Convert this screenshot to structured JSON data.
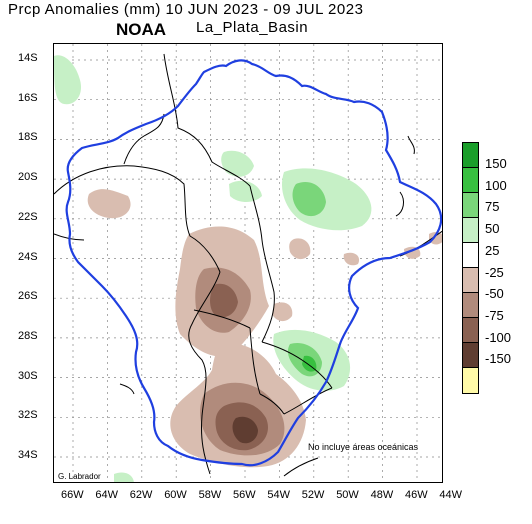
{
  "header": {
    "title": "Prcp Anomalies (mm) 10 JUN 2023 - 09 JUL 2023",
    "region": "La_Plata_Basin",
    "agency": "NOAA"
  },
  "map": {
    "lat_labels": [
      "14S",
      "16S",
      "18S",
      "20S",
      "22S",
      "24S",
      "26S",
      "28S",
      "30S",
      "32S",
      "34S"
    ],
    "lon_labels": [
      "66W",
      "64W",
      "62W",
      "60W",
      "58W",
      "56W",
      "54W",
      "52W",
      "50W",
      "48W",
      "46W",
      "44W"
    ],
    "basin_outline_color": "#1f3fe0",
    "country_border_color": "#000000"
  },
  "legend": {
    "levels": [
      "150",
      "100",
      "75",
      "50",
      "25",
      "-25",
      "-50",
      "-75",
      "-100",
      "-150"
    ],
    "colors": [
      "#1a9e2a",
      "#38c040",
      "#7ad67a",
      "#c6f0c6",
      "#ffffff",
      "#d9bdb0",
      "#b18b7c",
      "#8a6152",
      "#5f3d31",
      "#fffaa8"
    ]
  },
  "note": "No incluye áreas oceánicas",
  "credit": "G. Labrador"
}
